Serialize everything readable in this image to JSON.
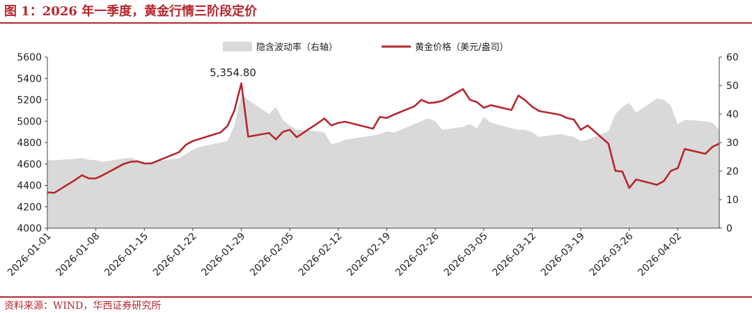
{
  "figure": {
    "title": "图 1：2026 年一季度，黄金行情三阶段定价",
    "source": "资料来源：WIND，华西证券研究所"
  },
  "colors": {
    "price_line": "#b5272d",
    "volatility_area": "#d9d9d9",
    "accent": "#b5272d"
  },
  "chart_data": {
    "type": "line",
    "x_ticks": [
      "2026-01-01",
      "2026-01-08",
      "2026-01-15",
      "2026-01-22",
      "2026-01-29",
      "2026-02-05",
      "2026-02-12",
      "2026-02-19",
      "2026-02-26",
      "2026-03-05",
      "2026-03-12",
      "2026-03-19",
      "2026-03-26",
      "2026-04-02"
    ],
    "x_range": [
      "2026-01-01",
      "2026-04-08"
    ],
    "y_left": {
      "range": [
        4000,
        5600
      ],
      "ticks": [
        4000,
        4200,
        4400,
        4600,
        4800,
        5000,
        5200,
        5400,
        5600
      ]
    },
    "y_right": {
      "range": [
        0,
        60
      ],
      "ticks": [
        0,
        10,
        20,
        30,
        40,
        50,
        60
      ]
    },
    "legend": {
      "position": "top-center"
    },
    "grid": false,
    "annotation": {
      "text": "5,354.80",
      "date": "2026-01-29",
      "value": 5354.8
    },
    "series": [
      {
        "name": "隐含波动率（右轴）",
        "type": "area",
        "axis": "right",
        "x": [
          "2026-01-01",
          "2026-01-02",
          "2026-01-05",
          "2026-01-06",
          "2026-01-07",
          "2026-01-08",
          "2026-01-09",
          "2026-01-12",
          "2026-01-13",
          "2026-01-14",
          "2026-01-15",
          "2026-01-16",
          "2026-01-20",
          "2026-01-21",
          "2026-01-22",
          "2026-01-23",
          "2026-01-26",
          "2026-01-27",
          "2026-01-28",
          "2026-01-29",
          "2026-01-30",
          "2026-02-02",
          "2026-02-03",
          "2026-02-04",
          "2026-02-05",
          "2026-02-06",
          "2026-02-09",
          "2026-02-10",
          "2026-02-11",
          "2026-02-12",
          "2026-02-13",
          "2026-02-17",
          "2026-02-18",
          "2026-02-19",
          "2026-02-20",
          "2026-02-23",
          "2026-02-24",
          "2026-02-25",
          "2026-02-26",
          "2026-02-27",
          "2026-03-02",
          "2026-03-03",
          "2026-03-04",
          "2026-03-05",
          "2026-03-06",
          "2026-03-09",
          "2026-03-10",
          "2026-03-11",
          "2026-03-12",
          "2026-03-13",
          "2026-03-16",
          "2026-03-17",
          "2026-03-18",
          "2026-03-19",
          "2026-03-20",
          "2026-03-23",
          "2026-03-24",
          "2026-03-25",
          "2026-03-26",
          "2026-03-27",
          "2026-03-30",
          "2026-03-31",
          "2026-04-01",
          "2026-04-02",
          "2026-04-03",
          "2026-04-06",
          "2026-04-07",
          "2026-04-08"
        ],
        "values": [
          23.8,
          23.8,
          24.3,
          24.6,
          24.0,
          23.8,
          23.3,
          24.4,
          24.7,
          23.8,
          23.0,
          23.2,
          24.5,
          26.0,
          27.5,
          28.5,
          30.0,
          30.5,
          36.0,
          47.0,
          45.0,
          40.0,
          42.5,
          38.0,
          36.0,
          34.5,
          34.0,
          33.5,
          29.5,
          30.0,
          31.0,
          32.5,
          33.0,
          34.0,
          33.5,
          36.5,
          37.5,
          38.5,
          37.5,
          34.5,
          35.5,
          36.5,
          35.0,
          39.0,
          37.0,
          35.0,
          34.5,
          34.5,
          33.5,
          32.0,
          33.0,
          32.5,
          32.0,
          30.5,
          31.0,
          34.0,
          40.0,
          42.5,
          44.0,
          40.5,
          45.5,
          45.0,
          43.0,
          36.5,
          38.0,
          37.5,
          37.0,
          34.5
        ]
      },
      {
        "name": "黄金价格（美元/盎司）",
        "type": "line",
        "axis": "left",
        "x": [
          "2026-01-01",
          "2026-01-02",
          "2026-01-05",
          "2026-01-06",
          "2026-01-07",
          "2026-01-08",
          "2026-01-09",
          "2026-01-12",
          "2026-01-13",
          "2026-01-14",
          "2026-01-15",
          "2026-01-16",
          "2026-01-20",
          "2026-01-21",
          "2026-01-22",
          "2026-01-23",
          "2026-01-26",
          "2026-01-27",
          "2026-01-28",
          "2026-01-29",
          "2026-01-30",
          "2026-02-02",
          "2026-02-03",
          "2026-02-04",
          "2026-02-05",
          "2026-02-06",
          "2026-02-09",
          "2026-02-10",
          "2026-02-11",
          "2026-02-12",
          "2026-02-13",
          "2026-02-17",
          "2026-02-18",
          "2026-02-19",
          "2026-02-20",
          "2026-02-23",
          "2026-02-24",
          "2026-02-25",
          "2026-02-26",
          "2026-02-27",
          "2026-03-02",
          "2026-03-03",
          "2026-03-04",
          "2026-03-05",
          "2026-03-06",
          "2026-03-09",
          "2026-03-10",
          "2026-03-11",
          "2026-03-12",
          "2026-03-13",
          "2026-03-16",
          "2026-03-17",
          "2026-03-18",
          "2026-03-19",
          "2026-03-20",
          "2026-03-23",
          "2026-03-24",
          "2026-03-25",
          "2026-03-26",
          "2026-03-27",
          "2026-03-30",
          "2026-03-31",
          "2026-04-01",
          "2026-04-02",
          "2026-04-03",
          "2026-04-06",
          "2026-04-07",
          "2026-04-08"
        ],
        "values": [
          4335,
          4330,
          4450,
          4495,
          4465,
          4465,
          4495,
          4600,
          4620,
          4625,
          4605,
          4605,
          4710,
          4780,
          4815,
          4835,
          4895,
          4955,
          5100,
          5354.8,
          4855,
          4890,
          4830,
          4900,
          4920,
          4850,
          4980,
          5025,
          4960,
          4985,
          4995,
          4930,
          5040,
          5030,
          5060,
          5140,
          5200,
          5170,
          5175,
          5190,
          5300,
          5200,
          5180,
          5125,
          5150,
          5105,
          5240,
          5195,
          5135,
          5095,
          5060,
          5030,
          5015,
          4920,
          4960,
          4790,
          4535,
          4530,
          4375,
          4455,
          4405,
          4440,
          4535,
          4560,
          4740,
          4695,
          4760,
          4790
        ]
      }
    ]
  }
}
